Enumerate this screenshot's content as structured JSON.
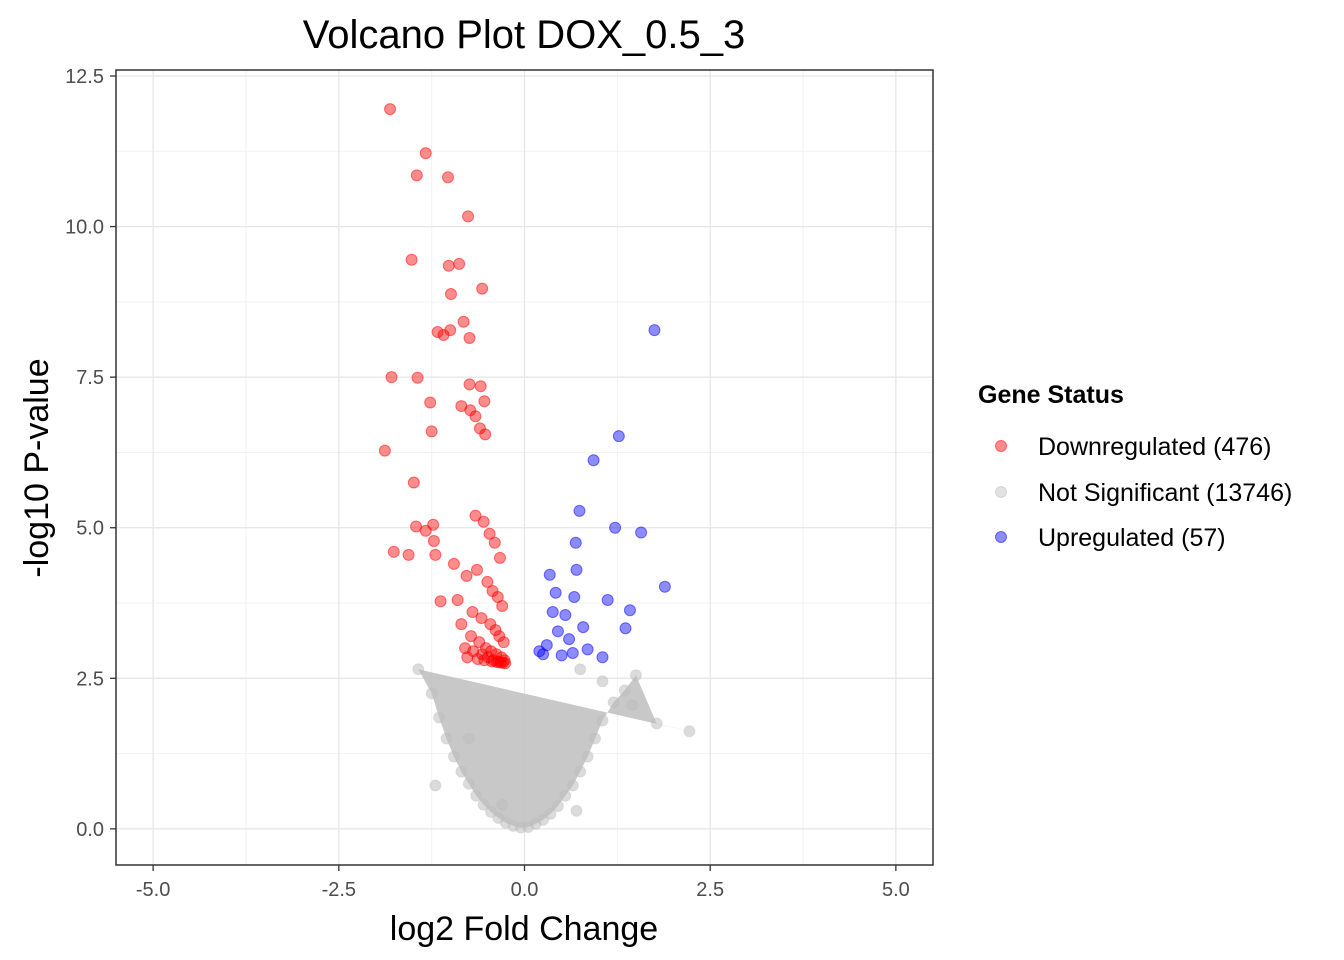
{
  "chart_data": {
    "type": "scatter",
    "title": "Volcano Plot DOX_0.5_3",
    "xlabel": "log2 Fold Change",
    "ylabel": "-log10 P-value",
    "xlim": [
      -5.5,
      5.5
    ],
    "ylim": [
      -0.6,
      12.6
    ],
    "x_ticks": [
      -5,
      -2.5,
      0,
      2.5,
      5
    ],
    "x_tick_labels": [
      "-5.0",
      "-2.5",
      "0.0",
      "2.5",
      "5.0"
    ],
    "y_ticks": [
      0,
      2.5,
      5,
      7.5,
      10,
      12.5
    ],
    "y_tick_labels": [
      "0.0",
      "2.5",
      "5.0",
      "7.5",
      "10.0",
      "12.5"
    ],
    "grid": true,
    "legend": {
      "title": "Gene Status",
      "placement": "right",
      "entries": [
        {
          "label": "Downregulated (476)",
          "color": "#ff0000"
        },
        {
          "label": "Not Significant (13746)",
          "color": "#bebebe"
        },
        {
          "label": "Upregulated (57)",
          "color": "#0000ff"
        }
      ]
    },
    "series": [
      {
        "name": "Downregulated (476)",
        "color": "#ff0000",
        "x": [
          -1.81,
          -1.33,
          -1.45,
          -1.03,
          -0.76,
          -1.52,
          -1.02,
          -0.88,
          -0.99,
          -0.57,
          -1.0,
          -1.17,
          -1.09,
          -0.82,
          -0.74,
          -1.79,
          -1.44,
          -0.74,
          -0.59,
          -0.54,
          -0.85,
          -1.27,
          -0.73,
          -0.66,
          -1.25,
          -0.6,
          -0.53,
          -1.88,
          -1.49,
          -1.46,
          -1.33,
          -1.23,
          -1.76,
          -1.56,
          -1.22,
          -1.2,
          -1.13,
          -0.66,
          -0.55,
          -0.47,
          -0.4,
          -0.33,
          -0.95,
          -0.78,
          -0.64,
          -0.5,
          -0.43,
          -0.36,
          -0.3,
          -0.9,
          -0.7,
          -0.58,
          -0.46,
          -0.39,
          -0.34,
          -0.28,
          -0.85,
          -0.72,
          -0.61,
          -0.52,
          -0.45,
          -0.38,
          -0.31,
          -0.27,
          -0.8,
          -0.69,
          -0.57,
          -0.49,
          -0.42,
          -0.35,
          -0.29,
          -0.77,
          -0.63,
          -0.54,
          -0.44,
          -0.37,
          -0.32,
          -0.26
        ],
        "y": [
          11.95,
          11.22,
          10.85,
          10.82,
          10.17,
          9.45,
          9.35,
          9.38,
          8.88,
          8.97,
          8.28,
          8.25,
          8.2,
          8.42,
          8.15,
          7.5,
          7.49,
          7.38,
          7.35,
          7.1,
          7.02,
          7.08,
          6.95,
          6.85,
          6.6,
          6.65,
          6.55,
          6.28,
          5.75,
          5.02,
          4.95,
          5.05,
          4.6,
          4.55,
          4.78,
          4.55,
          3.78,
          5.2,
          5.1,
          4.9,
          4.75,
          4.5,
          4.4,
          4.2,
          4.3,
          4.1,
          3.95,
          3.85,
          3.7,
          3.8,
          3.6,
          3.5,
          3.4,
          3.3,
          3.2,
          3.1,
          3.4,
          3.2,
          3.1,
          3.0,
          2.95,
          2.9,
          2.85,
          2.8,
          3.0,
          2.95,
          2.9,
          2.85,
          2.8,
          2.78,
          2.76,
          2.85,
          2.82,
          2.8,
          2.78,
          2.77,
          2.76,
          2.75
        ]
      },
      {
        "name": "Not Significant (13746)",
        "color": "#bebebe",
        "x": [
          -1.43,
          -1.25,
          -1.15,
          -1.05,
          -0.95,
          -0.85,
          -0.75,
          -0.65,
          -0.55,
          -0.45,
          -0.35,
          -0.25,
          -0.15,
          -0.05,
          0.05,
          0.15,
          0.25,
          0.35,
          0.45,
          0.55,
          0.65,
          0.75,
          0.85,
          0.95,
          1.05,
          1.2,
          1.35,
          1.5,
          1.78,
          2.22,
          1.45,
          1.05,
          0.75,
          -1.2,
          -0.75,
          -0.3,
          0.7
        ],
        "y": [
          2.65,
          2.25,
          1.85,
          1.5,
          1.2,
          0.95,
          0.75,
          0.55,
          0.4,
          0.28,
          0.18,
          0.1,
          0.05,
          0.02,
          0.03,
          0.08,
          0.15,
          0.25,
          0.38,
          0.55,
          0.72,
          0.95,
          1.2,
          1.5,
          1.8,
          2.1,
          2.3,
          2.55,
          1.75,
          1.62,
          2.05,
          2.45,
          2.65,
          0.72,
          1.5,
          0.4,
          0.3
        ]
      },
      {
        "name": "Upregulated (57)",
        "color": "#0000ff",
        "x": [
          1.75,
          1.27,
          0.93,
          0.74,
          1.22,
          1.57,
          0.69,
          1.89,
          0.7,
          0.34,
          0.42,
          0.67,
          1.12,
          1.42,
          0.38,
          0.55,
          0.79,
          1.36,
          0.45,
          0.6,
          0.3,
          0.85,
          0.2,
          0.25,
          0.5,
          0.65,
          1.05
        ],
        "y": [
          8.28,
          6.52,
          6.12,
          5.28,
          5.0,
          4.92,
          4.75,
          4.02,
          4.3,
          4.22,
          3.92,
          3.85,
          3.8,
          3.63,
          3.6,
          3.55,
          3.35,
          3.33,
          3.28,
          3.15,
          3.05,
          2.98,
          2.95,
          2.9,
          2.88,
          2.92,
          2.85
        ]
      }
    ]
  }
}
